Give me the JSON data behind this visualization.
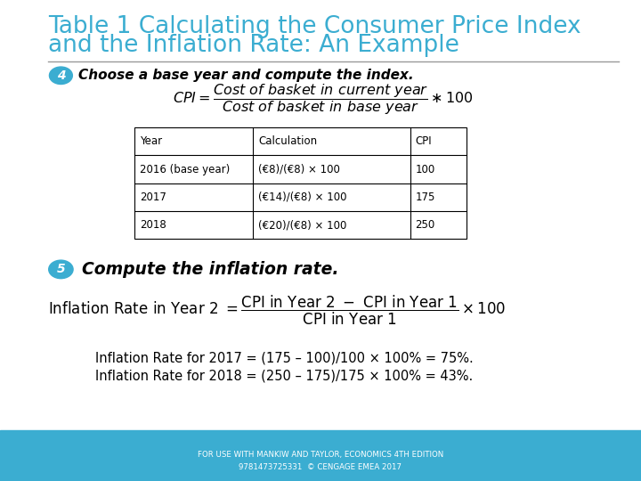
{
  "title_line1": "Table 1 Calculating the Consumer Price Index",
  "title_line2": "and the Inflation Rate: An Example",
  "title_color": "#3BADD1",
  "title_fontsize": 19,
  "bg_color": "#FFFFFF",
  "footer_bg_color": "#3BADD1",
  "footer_text1": "FOR USE WITH MANKIW AND TAYLOR, ECONOMICS 4TH EDITION",
  "footer_text2": "9781473725331  © CENGAGE EMEA 2017",
  "footer_text_color": "#FFFFFF",
  "step4_circle_color": "#3BADD1",
  "step4_number": "4",
  "step4_text": "Choose a base year and compute the index.",
  "step5_circle_color": "#3BADD1",
  "step5_number": "5",
  "step5_text": "Compute the inflation rate.",
  "table_headers": [
    "Year",
    "Calculation",
    "CPI"
  ],
  "table_rows": [
    [
      "2016 (base year)",
      "(€8)/(€8) × 100",
      "100"
    ],
    [
      "2017",
      "(€14)/(€8) × 100",
      "175"
    ],
    [
      "2018",
      "(€20)/(€8) × 100",
      "250"
    ]
  ],
  "separator_color": "#999999",
  "text_color": "#000000",
  "step4_bold_text": "Choose a base year and compute the index.",
  "step5_bold_text": "Compute the inflation rate.",
  "inflation_ex1": "Inflation Rate for 2017 = (175 – 100)/100 × 100% = 75%.",
  "inflation_ex2": "Inflation Rate for 2018 = (250 – 175)/175 × 100% = 43%."
}
